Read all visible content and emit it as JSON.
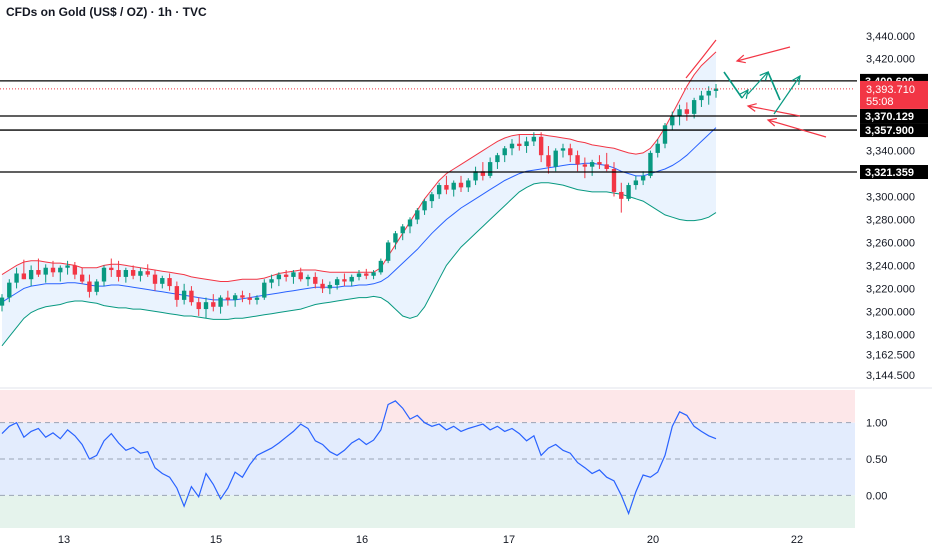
{
  "title": "CFDs on Gold (US$ / OZ) · 1h · TVC",
  "colors": {
    "up": "#089981",
    "down": "#f23645",
    "bb_upper": "#f23645",
    "bb_basis": "#2962ff",
    "bb_lower": "#089981",
    "bb_fill": "#e3effd",
    "osc_line": "#2962ff",
    "osc_top_zone": "#fde7e9",
    "osc_mid_zone": "#e3ecfd",
    "osc_low_zone": "#e5f3ec",
    "level_line": "#000000",
    "annotation_green": "#089981",
    "annotation_red": "#f23645"
  },
  "chart_data": [
    {
      "type": "candlestick",
      "x_labels": [
        "13",
        "15",
        "16",
        "17",
        "20",
        "22"
      ],
      "y_ticks": [
        3144.5,
        3162.5,
        3180,
        3200,
        3220,
        3240,
        3260,
        3280,
        3300,
        3320,
        3340,
        3360,
        3380,
        3400,
        3420,
        3440
      ],
      "y_tick_labels": [
        "3,144.500",
        "3,162.500",
        "3,180.000",
        "3,200.000",
        "3,220.000",
        "3,240.000",
        "3,260.000",
        "3,280.000",
        "3,300.000",
        "3,320.000",
        "3,340.000",
        "3,360.000",
        "3,380.000",
        "3,400.000",
        "3,420.000",
        "3,440.000"
      ],
      "ylim": [
        3135,
        3452
      ],
      "candles": [
        [
          3205,
          3215,
          3200,
          3212
        ],
        [
          3212,
          3228,
          3208,
          3225
        ],
        [
          3225,
          3238,
          3220,
          3233
        ],
        [
          3233,
          3245,
          3228,
          3228
        ],
        [
          3228,
          3240,
          3222,
          3236
        ],
        [
          3236,
          3246,
          3230,
          3232
        ],
        [
          3232,
          3241,
          3225,
          3238
        ],
        [
          3238,
          3244,
          3230,
          3234
        ],
        [
          3234,
          3240,
          3226,
          3238
        ],
        [
          3238,
          3244,
          3232,
          3240
        ],
        [
          3240,
          3243,
          3228,
          3232
        ],
        [
          3232,
          3238,
          3224,
          3226
        ],
        [
          3226,
          3232,
          3212,
          3217
        ],
        [
          3217,
          3228,
          3214,
          3226
        ],
        [
          3226,
          3240,
          3222,
          3238
        ],
        [
          3238,
          3246,
          3230,
          3236
        ],
        [
          3236,
          3244,
          3226,
          3230
        ],
        [
          3230,
          3238,
          3225,
          3236
        ],
        [
          3236,
          3240,
          3228,
          3231
        ],
        [
          3231,
          3238,
          3226,
          3235
        ],
        [
          3235,
          3241,
          3230,
          3232
        ],
        [
          3232,
          3236,
          3218,
          3224
        ],
        [
          3224,
          3231,
          3220,
          3229
        ],
        [
          3229,
          3233,
          3218,
          3222
        ],
        [
          3222,
          3226,
          3204,
          3210
        ],
        [
          3210,
          3224,
          3206,
          3218
        ],
        [
          3218,
          3222,
          3205,
          3208
        ],
        [
          3208,
          3212,
          3196,
          3202
        ],
        [
          3202,
          3212,
          3194,
          3208
        ],
        [
          3208,
          3215,
          3200,
          3204
        ],
        [
          3204,
          3214,
          3198,
          3212
        ],
        [
          3212,
          3218,
          3205,
          3210
        ],
        [
          3210,
          3216,
          3204,
          3214
        ],
        [
          3214,
          3218,
          3208,
          3212
        ],
        [
          3212,
          3216,
          3206,
          3210
        ],
        [
          3210,
          3214,
          3206,
          3212
        ],
        [
          3212,
          3228,
          3210,
          3225
        ],
        [
          3225,
          3232,
          3220,
          3228
        ],
        [
          3228,
          3234,
          3222,
          3232
        ],
        [
          3232,
          3236,
          3226,
          3230
        ],
        [
          3230,
          3236,
          3224,
          3234
        ],
        [
          3234,
          3238,
          3226,
          3228
        ],
        [
          3228,
          3232,
          3222,
          3230
        ],
        [
          3230,
          3234,
          3220,
          3224
        ],
        [
          3224,
          3228,
          3216,
          3220
        ],
        [
          3220,
          3226,
          3215,
          3223
        ],
        [
          3223,
          3230,
          3219,
          3228
        ],
        [
          3228,
          3233,
          3222,
          3226
        ],
        [
          3226,
          3232,
          3222,
          3230
        ],
        [
          3230,
          3236,
          3227,
          3233
        ],
        [
          3233,
          3237,
          3228,
          3231
        ],
        [
          3231,
          3236,
          3228,
          3234
        ],
        [
          3234,
          3246,
          3232,
          3244
        ],
        [
          3244,
          3262,
          3242,
          3260
        ],
        [
          3260,
          3270,
          3254,
          3268
        ],
        [
          3268,
          3276,
          3262,
          3274
        ],
        [
          3274,
          3282,
          3268,
          3280
        ],
        [
          3280,
          3290,
          3276,
          3288
        ],
        [
          3288,
          3298,
          3284,
          3296
        ],
        [
          3296,
          3304,
          3290,
          3302
        ],
        [
          3302,
          3312,
          3298,
          3310
        ],
        [
          3310,
          3318,
          3302,
          3306
        ],
        [
          3306,
          3314,
          3300,
          3312
        ],
        [
          3312,
          3318,
          3304,
          3308
        ],
        [
          3308,
          3316,
          3304,
          3314
        ],
        [
          3314,
          3326,
          3310,
          3322
        ],
        [
          3322,
          3330,
          3314,
          3318
        ],
        [
          3318,
          3334,
          3316,
          3330
        ],
        [
          3330,
          3338,
          3324,
          3336
        ],
        [
          3336,
          3344,
          3330,
          3342
        ],
        [
          3342,
          3350,
          3336,
          3346
        ],
        [
          3346,
          3354,
          3340,
          3344
        ],
        [
          3344,
          3352,
          3338,
          3348
        ],
        [
          3348,
          3356,
          3344,
          3352
        ],
        [
          3352,
          3356,
          3330,
          3336
        ],
        [
          3336,
          3344,
          3320,
          3326
        ],
        [
          3326,
          3342,
          3322,
          3340
        ],
        [
          3340,
          3346,
          3334,
          3342
        ],
        [
          3342,
          3346,
          3330,
          3336
        ],
        [
          3336,
          3340,
          3322,
          3328
        ],
        [
          3328,
          3334,
          3316,
          3326
        ],
        [
          3326,
          3332,
          3318,
          3330
        ],
        [
          3330,
          3336,
          3324,
          3328
        ],
        [
          3328,
          3338,
          3322,
          3324
        ],
        [
          3324,
          3330,
          3300,
          3304
        ],
        [
          3304,
          3312,
          3286,
          3298
        ],
        [
          3298,
          3312,
          3296,
          3310
        ],
        [
          3310,
          3318,
          3306,
          3314
        ],
        [
          3314,
          3322,
          3310,
          3318
        ],
        [
          3318,
          3340,
          3316,
          3338
        ],
        [
          3338,
          3350,
          3334,
          3346
        ],
        [
          3346,
          3364,
          3342,
          3362
        ],
        [
          3362,
          3374,
          3358,
          3370
        ],
        [
          3370,
          3380,
          3362,
          3376
        ],
        [
          3376,
          3382,
          3366,
          3372
        ],
        [
          3372,
          3386,
          3368,
          3384
        ],
        [
          3384,
          3392,
          3378,
          3388
        ],
        [
          3388,
          3396,
          3380,
          3392
        ],
        [
          3392,
          3398,
          3386,
          3394
        ]
      ],
      "bollinger": {
        "upper": [
          3232,
          3236,
          3240,
          3243,
          3244,
          3244,
          3243,
          3242,
          3242,
          3241,
          3240,
          3238,
          3238,
          3238,
          3240,
          3241,
          3241,
          3240,
          3239,
          3238,
          3237,
          3236,
          3235,
          3234,
          3233,
          3232,
          3230,
          3229,
          3228,
          3227,
          3226,
          3226,
          3227,
          3228,
          3228,
          3228,
          3229,
          3231,
          3233,
          3234,
          3235,
          3236,
          3236,
          3236,
          3235,
          3234,
          3234,
          3234,
          3234,
          3234,
          3234,
          3234,
          3238,
          3248,
          3258,
          3268,
          3278,
          3288,
          3298,
          3306,
          3314,
          3320,
          3324,
          3328,
          3332,
          3336,
          3340,
          3344,
          3348,
          3351,
          3353,
          3354,
          3354,
          3354,
          3354,
          3353,
          3352,
          3351,
          3350,
          3348,
          3347,
          3345,
          3344,
          3343,
          3342,
          3340,
          3338,
          3337,
          3338,
          3342,
          3350,
          3360,
          3372,
          3384,
          3396,
          3406,
          3414,
          3420,
          3426
        ],
        "basis": [
          3208,
          3212,
          3216,
          3220,
          3222,
          3223,
          3224,
          3224,
          3224,
          3225,
          3225,
          3224,
          3223,
          3222,
          3222,
          3223,
          3223,
          3222,
          3221,
          3220,
          3219,
          3218,
          3217,
          3216,
          3215,
          3214,
          3213,
          3212,
          3211,
          3210,
          3210,
          3210,
          3210,
          3211,
          3212,
          3213,
          3214,
          3215,
          3216,
          3217,
          3218,
          3219,
          3220,
          3221,
          3221,
          3221,
          3221,
          3222,
          3222,
          3223,
          3223,
          3224,
          3226,
          3230,
          3236,
          3242,
          3248,
          3254,
          3261,
          3268,
          3274,
          3280,
          3285,
          3290,
          3294,
          3298,
          3302,
          3306,
          3310,
          3314,
          3317,
          3320,
          3322,
          3323,
          3324,
          3325,
          3326,
          3327,
          3328,
          3328,
          3329,
          3329,
          3328,
          3327,
          3325,
          3322,
          3320,
          3318,
          3318,
          3320,
          3322,
          3324,
          3327,
          3331,
          3336,
          3342,
          3348,
          3354,
          3360
        ],
        "lower": [
          3170,
          3178,
          3186,
          3194,
          3199,
          3202,
          3204,
          3205,
          3206,
          3208,
          3209,
          3209,
          3208,
          3207,
          3205,
          3204,
          3203,
          3203,
          3202,
          3202,
          3201,
          3200,
          3199,
          3198,
          3197,
          3196,
          3196,
          3195,
          3194,
          3193,
          3193,
          3193,
          3194,
          3194,
          3195,
          3196,
          3197,
          3198,
          3199,
          3200,
          3201,
          3202,
          3204,
          3206,
          3207,
          3208,
          3209,
          3210,
          3211,
          3212,
          3212,
          3213,
          3212,
          3208,
          3202,
          3196,
          3194,
          3196,
          3204,
          3216,
          3228,
          3240,
          3248,
          3256,
          3262,
          3268,
          3274,
          3280,
          3286,
          3292,
          3298,
          3304,
          3308,
          3311,
          3312,
          3312,
          3311,
          3310,
          3308,
          3306,
          3305,
          3304,
          3304,
          3304,
          3303,
          3302,
          3300,
          3298,
          3296,
          3292,
          3288,
          3284,
          3282,
          3280,
          3279,
          3279,
          3280,
          3282,
          3286
        ]
      },
      "levels": [
        {
          "value": 3400.699,
          "label": "3,400.699"
        },
        {
          "value": 3370.129,
          "label": "3,370.129"
        },
        {
          "value": 3357.9,
          "label": "3,357.900"
        },
        {
          "value": 3321.359,
          "label": "3,321.359"
        }
      ],
      "last_price": {
        "value": 3393.71,
        "label": "3,393.710",
        "countdown": "55:08"
      }
    },
    {
      "type": "line",
      "name": "",
      "y_ticks": [
        1.0,
        0.5,
        0.0
      ],
      "y_tick_labels": [
        "1.00",
        "0.50",
        "0.00"
      ],
      "ylim": [
        -0.45,
        1.45
      ],
      "zones": {
        "top_from": 1.0,
        "mid_from": 0.0
      },
      "values": [
        0.85,
        0.95,
        1.0,
        0.8,
        0.88,
        0.92,
        0.8,
        0.86,
        0.78,
        0.9,
        0.82,
        0.7,
        0.5,
        0.55,
        0.75,
        0.85,
        0.72,
        0.62,
        0.66,
        0.58,
        0.6,
        0.38,
        0.3,
        0.25,
        0.1,
        -0.15,
        0.12,
        -0.02,
        0.3,
        0.15,
        -0.05,
        0.1,
        0.32,
        0.25,
        0.42,
        0.55,
        0.6,
        0.65,
        0.72,
        0.8,
        0.88,
        0.98,
        0.92,
        0.75,
        0.7,
        0.6,
        0.55,
        0.62,
        0.72,
        0.78,
        0.7,
        0.76,
        0.9,
        1.25,
        1.3,
        1.2,
        1.05,
        1.1,
        1.0,
        0.95,
        0.98,
        0.9,
        0.95,
        0.88,
        0.92,
        0.95,
        0.98,
        0.9,
        0.95,
        0.88,
        0.92,
        0.85,
        0.75,
        0.82,
        0.55,
        0.65,
        0.7,
        0.62,
        0.58,
        0.45,
        0.38,
        0.3,
        0.35,
        0.25,
        0.2,
        0.0,
        -0.25,
        0.05,
        0.28,
        0.25,
        0.32,
        0.55,
        0.95,
        1.15,
        1.1,
        0.95,
        0.88,
        0.82,
        0.78
      ]
    }
  ]
}
